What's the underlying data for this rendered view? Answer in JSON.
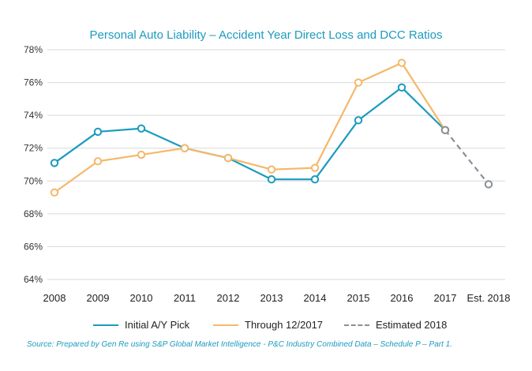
{
  "chart_data": {
    "type": "line",
    "title": "Personal Auto Liability – Accident Year Direct Loss and DCC Ratios",
    "categories": [
      "2008",
      "2009",
      "2010",
      "2011",
      "2012",
      "2013",
      "2014",
      "2015",
      "2016",
      "2017",
      "Est. 2018"
    ],
    "yticks": [
      "64%",
      "66%",
      "68%",
      "70%",
      "72%",
      "74%",
      "76%",
      "78%"
    ],
    "ylim": [
      64,
      78
    ],
    "xlabel": "",
    "ylabel": "",
    "series": [
      {
        "name": "Initial A/Y Pick",
        "color": "#1a9bbe",
        "dashed": false,
        "values": [
          71.1,
          73.0,
          73.2,
          72.0,
          71.4,
          70.1,
          70.1,
          73.7,
          75.7,
          73.1,
          null
        ]
      },
      {
        "name": "Through 12/2017",
        "color": "#f5b86a",
        "dashed": false,
        "values": [
          69.3,
          71.2,
          71.6,
          72.0,
          71.4,
          70.7,
          70.8,
          76.0,
          77.2,
          73.1,
          null
        ]
      },
      {
        "name": "Estimated 2018",
        "color": "#8a8f98",
        "dashed": true,
        "values": [
          null,
          null,
          null,
          null,
          null,
          null,
          null,
          null,
          null,
          73.1,
          69.8
        ]
      }
    ],
    "source": "Source: Prepared by Gen Re using S&P Global Market Intelligence - P&C Industry Combined Data – Schedule P – Part 1."
  }
}
